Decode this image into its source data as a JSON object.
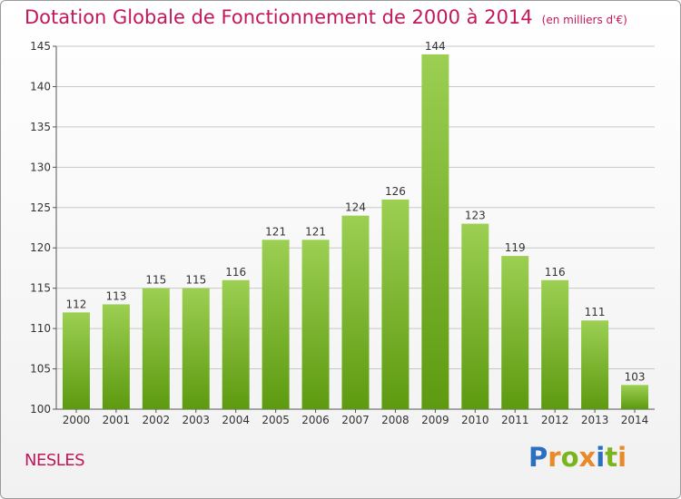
{
  "title": "Dotation Globale de Fonctionnement de 2000 à 2014",
  "unit": "(en milliers d'€)",
  "place": "NESLES",
  "logo": {
    "text": "Proxiti",
    "colors": [
      "#2b6fc0",
      "#e8892a",
      "#7ab51d",
      "#e8892a",
      "#2b6fc0",
      "#7ab51d",
      "#e8892a"
    ]
  },
  "colors": {
    "title": "#c2185b",
    "bar_top": "#9ccf52",
    "bar_bottom": "#5d9a10",
    "grid": "#c8c8c8"
  },
  "chart_data": {
    "type": "bar",
    "title": "Dotation Globale de Fonctionnement de 2000 à 2014",
    "xlabel": "",
    "ylabel": "",
    "categories": [
      "2000",
      "2001",
      "2002",
      "2003",
      "2004",
      "2005",
      "2006",
      "2007",
      "2008",
      "2009",
      "2010",
      "2011",
      "2012",
      "2013",
      "2014"
    ],
    "values": [
      112,
      113,
      115,
      115,
      116,
      121,
      121,
      124,
      126,
      144,
      123,
      119,
      116,
      111,
      103
    ],
    "ylim": [
      100,
      145
    ],
    "yticks": [
      100,
      105,
      110,
      115,
      120,
      125,
      130,
      135,
      140,
      145
    ],
    "grid": true,
    "data_labels": true
  }
}
